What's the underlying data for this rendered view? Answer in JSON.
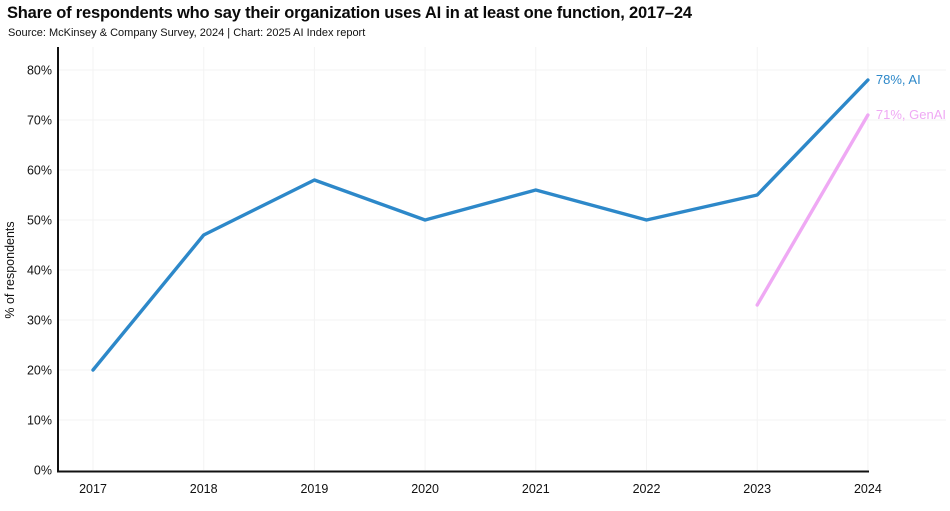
{
  "chart_data": {
    "type": "line",
    "title": "Share of respondents who say their organization uses AI in at least one function, 2017–24",
    "subtitle": "Source: McKinsey & Company Survey, 2024 | Chart: 2025 AI Index report",
    "xlabel": "",
    "ylabel": "% of respondents",
    "ylim": [
      0,
      80
    ],
    "ytick_step": 10,
    "ytick_labels": [
      "0%",
      "10%",
      "20%",
      "30%",
      "40%",
      "50%",
      "60%",
      "70%",
      "80%"
    ],
    "categories": [
      "2017",
      "2018",
      "2019",
      "2020",
      "2021",
      "2022",
      "2023",
      "2024"
    ],
    "x": [
      2017,
      2018,
      2019,
      2020,
      2021,
      2022,
      2023,
      2024
    ],
    "grid": true,
    "legend_position": "line-end-labels",
    "colors": {
      "ai_line": "#2d88c9",
      "genai_line": "#efa9f4",
      "axis": "#111111",
      "gridline": "#f3f3f3",
      "text": "#111111"
    },
    "series": [
      {
        "name": "AI",
        "color": "#2d88c9",
        "x": [
          2017,
          2018,
          2019,
          2020,
          2021,
          2022,
          2023,
          2024
        ],
        "values": [
          20,
          47,
          58,
          50,
          56,
          50,
          55,
          78
        ],
        "end_label": "78%, AI"
      },
      {
        "name": "GenAI",
        "color": "#efa9f4",
        "x": [
          2023,
          2024
        ],
        "values": [
          33,
          71
        ],
        "end_label": "71%, GenAI"
      }
    ]
  }
}
